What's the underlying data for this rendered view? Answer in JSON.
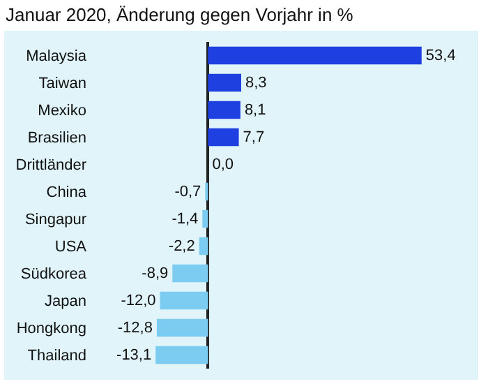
{
  "chart_data": {
    "type": "bar",
    "orientation": "horizontal",
    "title": "Januar 2020, Änderung gegen Vorjahr in %",
    "categories": [
      "Malaysia",
      "Taiwan",
      "Mexiko",
      "Brasilien",
      "Drittländer",
      "China",
      "Singapur",
      "USA",
      "Südkorea",
      "Japan",
      "Hongkong",
      "Thailand"
    ],
    "values": [
      53.4,
      8.3,
      8.1,
      7.7,
      0.0,
      -0.7,
      -1.4,
      -2.2,
      -8.9,
      -12.0,
      -12.8,
      -13.1
    ],
    "colors": [
      "#1e40e0",
      "#1e40e0",
      "#1e40e0",
      "#1e40e0",
      "#1e40e0",
      "#7ccbf0",
      "#7ccbf0",
      "#7ccbf0",
      "#7ccbf0",
      "#7ccbf0",
      "#7ccbf0",
      "#7ccbf0"
    ],
    "value_labels": [
      "53,4",
      "8,3",
      "8,1",
      "7,7",
      "0,0",
      "-0,7",
      "-1,4",
      "-2,2",
      "-8,9",
      "-12,0",
      "-12,8",
      "-13,1"
    ],
    "tick_labels": "y",
    "grid": false
  }
}
